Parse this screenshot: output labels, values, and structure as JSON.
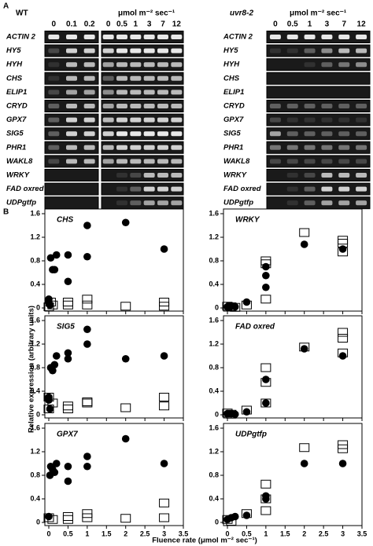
{
  "panel_a": {
    "label": "A",
    "wt_label": "WT",
    "mutant_label": "uvr8-2",
    "unit_wt": "μmol m⁻² sec⁻¹",
    "unit_mutant": "μmol m⁻² sec⁻¹",
    "wt_doses": [
      "0",
      "0.1",
      "0.2",
      "0",
      "0.5",
      "1",
      "3",
      "7",
      "12"
    ],
    "mutant_doses": [
      "0",
      "0.5",
      "1",
      "3",
      "7",
      "12"
    ],
    "genes": [
      "ACTIN 2",
      "HY5",
      "HYH",
      "CHS",
      "ELIP1",
      "CRYD",
      "GPX7",
      "SIG5",
      "PHR1",
      "WAKL8",
      "WRKY",
      "FAD oxred",
      "UDPgtfp"
    ]
  },
  "panel_b": {
    "label": "B",
    "y_label": "Relative expression (arbitrary units)",
    "x_label": "Fluence rate (μmol m⁻² sec⁻¹)"
  },
  "chart_data": [
    {
      "type": "scatter",
      "title": "CHS",
      "xlim": [
        0,
        3.5
      ],
      "ylim": [
        0,
        1.6
      ],
      "xticks": [
        0,
        0.5,
        1,
        1.5,
        2,
        2.5,
        3,
        3.5
      ],
      "yticks": [
        0,
        0.4,
        0.8,
        1.2,
        1.6
      ],
      "series": [
        {
          "color": "#000000",
          "marker": "circle",
          "x": [
            0,
            0,
            0.03,
            0.05,
            0.1,
            0.15,
            0.2,
            0.5,
            0.5,
            1,
            1,
            2,
            3
          ],
          "values": [
            0.1,
            0.15,
            0.05,
            0.85,
            0.65,
            0.65,
            0.9,
            0.45,
            0.9,
            1.4,
            0.87,
            1.45,
            1.0
          ]
        },
        {
          "color": "#000000",
          "marker": "square",
          "x": [
            0,
            0.05,
            0.1,
            0.5,
            0.5,
            1,
            1,
            2,
            3,
            3
          ],
          "values": [
            0.02,
            0.1,
            0.05,
            0.05,
            0.1,
            0.05,
            0.15,
            0.03,
            0.1,
            0.03
          ]
        }
      ]
    },
    {
      "type": "scatter",
      "title": "WRKY",
      "xlim": [
        0,
        3.5
      ],
      "ylim": [
        0,
        1.6
      ],
      "xticks": [
        0,
        0.5,
        1,
        1.5,
        2,
        2.5,
        3,
        3.5
      ],
      "yticks": [
        0,
        0.4,
        0.8,
        1.2,
        1.6
      ],
      "series": [
        {
          "color": "#000000",
          "marker": "circle",
          "x": [
            0,
            0.05,
            0.1,
            0.2,
            0.5,
            1,
            1,
            1,
            2,
            3
          ],
          "values": [
            0.02,
            0.01,
            0.03,
            0.02,
            0.1,
            0.55,
            0.35,
            0.7,
            1.08,
            1.0
          ]
        },
        {
          "color": "#000000",
          "marker": "square",
          "x": [
            0,
            0.1,
            0.2,
            0.5,
            1,
            1,
            1,
            2,
            3,
            3,
            3
          ],
          "values": [
            0.03,
            0.02,
            0.01,
            0.05,
            0.8,
            0.75,
            0.15,
            1.28,
            1.15,
            0.95,
            1.1
          ]
        }
      ]
    },
    {
      "type": "scatter",
      "title": "SIG5",
      "xlim": [
        0,
        3.5
      ],
      "ylim": [
        0,
        1.6
      ],
      "xticks": [
        0,
        0.5,
        1,
        1.5,
        2,
        2.5,
        3,
        3.5
      ],
      "yticks": [
        0,
        0.4,
        0.8,
        1.2,
        1.6
      ],
      "series": [
        {
          "color": "#000000",
          "marker": "circle",
          "x": [
            0,
            0,
            0.03,
            0.05,
            0.1,
            0.15,
            0.2,
            0.5,
            0.5,
            1,
            1,
            2,
            3
          ],
          "values": [
            0.3,
            0.25,
            0.1,
            0.8,
            0.75,
            0.85,
            1.0,
            1.05,
            0.95,
            1.45,
            1.2,
            0.95,
            1.0
          ]
        },
        {
          "color": "#000000",
          "marker": "square",
          "x": [
            0,
            0,
            0.1,
            0.5,
            0.5,
            1,
            1,
            2,
            3,
            3
          ],
          "values": [
            0.3,
            0.1,
            0.2,
            0.15,
            0.1,
            0.2,
            0.22,
            0.12,
            0.3,
            0.15
          ]
        }
      ]
    },
    {
      "type": "scatter",
      "title": "FAD oxred",
      "xlim": [
        0,
        3.5
      ],
      "ylim": [
        0,
        1.6
      ],
      "xticks": [
        0,
        0.5,
        1,
        1.5,
        2,
        2.5,
        3,
        3.5
      ],
      "yticks": [
        0,
        0.4,
        0.8,
        1.2,
        1.6
      ],
      "series": [
        {
          "color": "#000000",
          "marker": "circle",
          "x": [
            0,
            0.1,
            0.2,
            0.5,
            1,
            1,
            2,
            3
          ],
          "values": [
            0.02,
            0.02,
            0.01,
            0.05,
            0.6,
            0.2,
            1.12,
            1.0
          ]
        },
        {
          "color": "#000000",
          "marker": "square",
          "x": [
            0,
            0.1,
            0.5,
            1,
            1,
            1,
            2,
            3,
            3,
            3
          ],
          "values": [
            0.03,
            0.01,
            0.08,
            0.8,
            0.55,
            0.2,
            1.15,
            1.4,
            1.3,
            1.05
          ]
        }
      ]
    },
    {
      "type": "scatter",
      "title": "GPX7",
      "xlim": [
        0,
        3.5
      ],
      "ylim": [
        0,
        1.6
      ],
      "xticks": [
        0,
        0.5,
        1,
        1.5,
        2,
        2.5,
        3,
        3.5
      ],
      "yticks": [
        0,
        0.4,
        0.8,
        1.2,
        1.6
      ],
      "series": [
        {
          "color": "#000000",
          "marker": "circle",
          "x": [
            0,
            0.03,
            0.05,
            0.1,
            0.15,
            0.2,
            0.5,
            0.5,
            1,
            1,
            2,
            3
          ],
          "values": [
            0.1,
            0.8,
            0.95,
            0.9,
            0.85,
            1.0,
            0.95,
            0.7,
            1.12,
            0.95,
            1.42,
            1.0
          ]
        },
        {
          "color": "#000000",
          "marker": "square",
          "x": [
            0,
            0.1,
            0.5,
            0.5,
            1,
            1,
            2,
            3,
            3
          ],
          "values": [
            0.08,
            0.05,
            0.05,
            0.1,
            0.15,
            0.08,
            0.07,
            0.33,
            0.08
          ]
        }
      ]
    },
    {
      "type": "scatter",
      "title": "UDPgtfp",
      "xlim": [
        0,
        3.5
      ],
      "ylim": [
        0,
        1.6
      ],
      "xticks": [
        0,
        0.5,
        1,
        1.5,
        2,
        2.5,
        3,
        3.5
      ],
      "yticks": [
        0,
        0.4,
        0.8,
        1.2,
        1.6
      ],
      "series": [
        {
          "color": "#000000",
          "marker": "circle",
          "x": [
            0,
            0.1,
            0.2,
            0.5,
            1,
            1,
            2,
            3
          ],
          "values": [
            0.05,
            0.08,
            0.1,
            0.12,
            0.45,
            0.4,
            1.0,
            1.0
          ]
        },
        {
          "color": "#000000",
          "marker": "square",
          "x": [
            0,
            0.1,
            0.5,
            1,
            1,
            1,
            2,
            3,
            3
          ],
          "values": [
            0.05,
            0.02,
            0.15,
            0.65,
            0.4,
            0.2,
            1.27,
            1.32,
            1.25
          ]
        }
      ]
    }
  ]
}
